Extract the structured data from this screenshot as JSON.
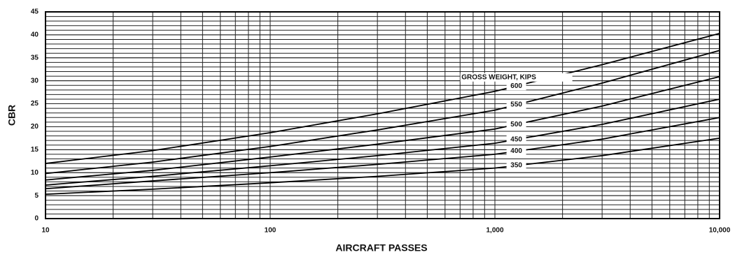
{
  "chart_data": {
    "type": "line",
    "x_label": "AIRCRAFT PASSES",
    "y_label": "CBR",
    "annotation": "GROSS WEIGHT, KIPS",
    "x": [
      10,
      30,
      100,
      300,
      1000,
      3000,
      10000
    ],
    "series": [
      {
        "name": "350",
        "color": "#000000",
        "values": [
          5.3,
          6.4,
          7.8,
          9.2,
          11,
          13.7,
          17.5
        ]
      },
      {
        "name": "400",
        "color": "#000000",
        "values": [
          6.5,
          8.2,
          10,
          11.8,
          14,
          17.3,
          22
        ]
      },
      {
        "name": "450",
        "color": "#000000",
        "values": [
          7.3,
          9.2,
          11.5,
          13.7,
          16.4,
          20.5,
          26
        ]
      },
      {
        "name": "500",
        "color": "#000000",
        "values": [
          8.4,
          10.5,
          13.4,
          16.2,
          19.5,
          24.5,
          30.9
        ]
      },
      {
        "name": "550",
        "color": "#000000",
        "values": [
          9.8,
          12.3,
          15.7,
          19.3,
          23.6,
          29.5,
          36.6
        ]
      },
      {
        "name": "600",
        "color": "#000000",
        "values": [
          12,
          14.8,
          18.7,
          22.8,
          27.7,
          33.5,
          40.3
        ]
      }
    ],
    "xlim": [
      10,
      10000
    ],
    "ylim": [
      0,
      45
    ],
    "xticks": [
      10,
      100,
      {
        "value": 1000,
        "label": "1,000"
      },
      {
        "value": 10000,
        "label": "10,000"
      }
    ],
    "yticks": [
      0,
      5,
      10,
      15,
      20,
      25,
      30,
      35,
      40,
      45
    ],
    "x_log": true,
    "grid": true,
    "y_minor_step": 1
  }
}
